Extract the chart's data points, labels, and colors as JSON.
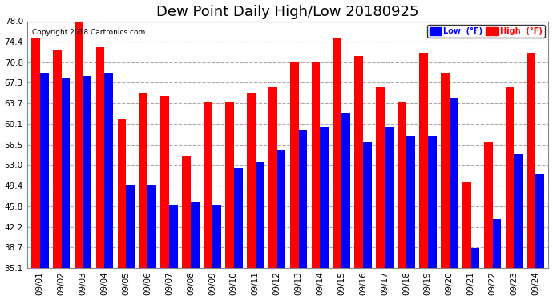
{
  "title": "Dew Point Daily High/Low 20180925",
  "copyright": "Copyright 2018 Cartronics.com",
  "dates": [
    "09/01",
    "09/02",
    "09/03",
    "09/04",
    "09/05",
    "09/06",
    "09/07",
    "09/08",
    "09/09",
    "09/10",
    "09/11",
    "09/12",
    "09/13",
    "09/14",
    "09/15",
    "09/16",
    "09/17",
    "09/18",
    "09/19",
    "09/20",
    "09/21",
    "09/22",
    "09/23",
    "09/24"
  ],
  "high": [
    75.0,
    73.0,
    78.0,
    73.5,
    61.0,
    65.5,
    65.0,
    54.5,
    64.0,
    64.0,
    65.5,
    66.5,
    70.8,
    70.8,
    75.0,
    72.0,
    66.5,
    64.0,
    72.5,
    69.0,
    50.0,
    57.0,
    66.5,
    72.5
  ],
  "low": [
    69.0,
    68.0,
    68.5,
    69.0,
    49.5,
    49.5,
    46.0,
    46.5,
    46.0,
    52.5,
    53.5,
    55.5,
    59.0,
    59.5,
    62.0,
    57.0,
    59.5,
    58.0,
    58.0,
    64.5,
    38.5,
    43.5,
    55.0,
    51.5
  ],
  "high_color": "#ff0000",
  "low_color": "#0000ff",
  "bg_color": "#ffffff",
  "plot_bg": "#ffffff",
  "grid_color": "#aaaaaa",
  "ylim_min": 35.1,
  "ylim_max": 78.0,
  "yticks": [
    35.1,
    38.7,
    42.2,
    45.8,
    49.4,
    53.0,
    56.5,
    60.1,
    63.7,
    67.3,
    70.8,
    74.4,
    78.0
  ],
  "title_fontsize": 13,
  "tick_fontsize": 7.5,
  "legend_low_label": "Low  (°F)",
  "legend_high_label": "High  (°F)"
}
